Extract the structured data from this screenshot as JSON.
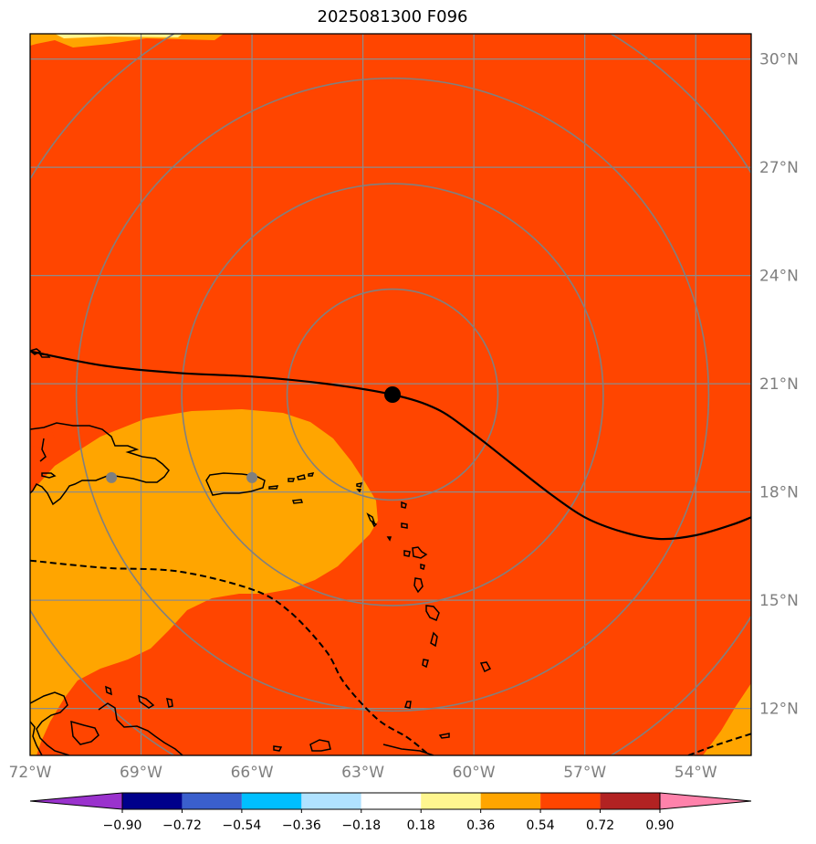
{
  "title": "2025081300 F096",
  "map": {
    "lon_range": [
      -72,
      -52.5
    ],
    "lat_range": [
      10.7,
      30.7
    ],
    "lon_ticks": [
      {
        "value": -72,
        "label": "72°W"
      },
      {
        "value": -69,
        "label": "69°W"
      },
      {
        "value": -66,
        "label": "66°W"
      },
      {
        "value": -63,
        "label": "63°W"
      },
      {
        "value": -60,
        "label": "60°W"
      },
      {
        "value": -57,
        "label": "57°W"
      },
      {
        "value": -54,
        "label": "54°W"
      }
    ],
    "lat_ticks": [
      {
        "value": 30,
        "label": "30°N"
      },
      {
        "value": 27,
        "label": "27°N"
      },
      {
        "value": 24,
        "label": "24°N"
      },
      {
        "value": 21,
        "label": "21°N"
      },
      {
        "value": 18,
        "label": "18°N"
      },
      {
        "value": 15,
        "label": "15°N"
      },
      {
        "value": 12,
        "label": "12°N"
      }
    ],
    "storm_center": {
      "lon": -62.2,
      "lat": 20.7
    },
    "range_rings_deg": [
      2.85,
      5.7,
      8.55,
      11.4
    ],
    "track": [
      [
        -72,
        21.9
      ],
      [
        -70,
        21.5
      ],
      [
        -68,
        21.3
      ],
      [
        -66,
        21.2
      ],
      [
        -64,
        21.0
      ],
      [
        -62.2,
        20.7
      ],
      [
        -61,
        20.3
      ],
      [
        -60,
        19.6
      ],
      [
        -59,
        18.8
      ],
      [
        -58,
        18.0
      ],
      [
        -57,
        17.3
      ],
      [
        -56,
        16.9
      ],
      [
        -55,
        16.7
      ],
      [
        -54,
        16.8
      ],
      [
        -53,
        17.1
      ],
      [
        -52.5,
        17.3
      ]
    ],
    "dashed_contour_west": [
      [
        -72,
        16.1
      ],
      [
        -70,
        15.9
      ],
      [
        -68,
        15.8
      ],
      [
        -66,
        15.3
      ],
      [
        -65,
        14.7
      ],
      [
        -64,
        13.6
      ],
      [
        -63.5,
        12.7
      ],
      [
        -62.6,
        11.7
      ],
      [
        -61.8,
        11.2
      ],
      [
        -61.2,
        10.7
      ]
    ],
    "dashed_contour_east": [
      [
        -54.2,
        10.7
      ],
      [
        -53.4,
        11.0
      ],
      [
        -52.5,
        11.3
      ]
    ],
    "reference_points": [
      {
        "lon": -69.8,
        "lat": 18.4
      },
      {
        "lon": -66.0,
        "lat": 18.4
      }
    ],
    "field_colors": {
      "high": "#ff4500",
      "mid": "#ffa500"
    }
  },
  "colorbar": {
    "levels": [
      "−0.90",
      "−0.72",
      "−0.54",
      "−0.36",
      "−0.18",
      "0.18",
      "0.36",
      "0.54",
      "0.72",
      "0.90"
    ],
    "colors": [
      "#9a32cd",
      "#00008b",
      "#3a5fcd",
      "#00bfff",
      "#b0e2ff",
      "#ffffff",
      "#fff68f",
      "#ffa500",
      "#ff4500",
      "#b22222",
      "#ff82ab"
    ]
  }
}
